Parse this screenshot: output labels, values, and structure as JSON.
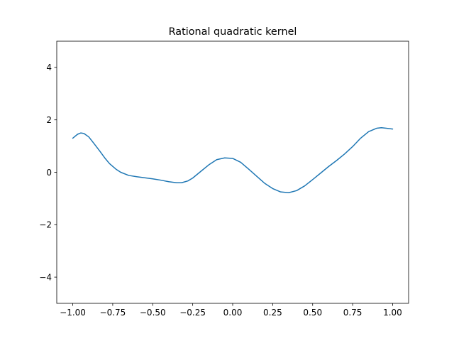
{
  "chart_data": {
    "type": "line",
    "title": "Rational quadratic kernel",
    "xlabel": "",
    "ylabel": "",
    "xlim": [
      -1.1,
      1.1
    ],
    "ylim": [
      -5,
      5
    ],
    "xticks": [
      -1.0,
      -0.75,
      -0.5,
      -0.25,
      0.0,
      0.25,
      0.5,
      0.75,
      1.0
    ],
    "xtick_labels": [
      "−1.00",
      "−0.75",
      "−0.50",
      "−0.25",
      "0.00",
      "0.25",
      "0.50",
      "0.75",
      "1.00"
    ],
    "yticks": [
      -4,
      -2,
      0,
      2,
      4
    ],
    "ytick_labels": [
      "−4",
      "−2",
      "0",
      "2",
      "4"
    ],
    "grid": false,
    "series": [
      {
        "color": "#1f77b4",
        "x": [
          -1.0,
          -0.97,
          -0.95,
          -0.93,
          -0.9,
          -0.87,
          -0.83,
          -0.8,
          -0.77,
          -0.73,
          -0.7,
          -0.65,
          -0.6,
          -0.55,
          -0.5,
          -0.45,
          -0.4,
          -0.35,
          -0.32,
          -0.28,
          -0.25,
          -0.2,
          -0.15,
          -0.1,
          -0.05,
          0.0,
          0.05,
          0.1,
          0.15,
          0.2,
          0.25,
          0.3,
          0.35,
          0.4,
          0.45,
          0.5,
          0.55,
          0.6,
          0.65,
          0.7,
          0.75,
          0.8,
          0.85,
          0.9,
          0.93,
          0.96,
          1.0
        ],
        "y": [
          1.3,
          1.45,
          1.5,
          1.48,
          1.35,
          1.12,
          0.8,
          0.55,
          0.33,
          0.12,
          0.0,
          -0.12,
          -0.17,
          -0.21,
          -0.25,
          -0.3,
          -0.36,
          -0.4,
          -0.4,
          -0.33,
          -0.22,
          0.03,
          0.28,
          0.48,
          0.55,
          0.53,
          0.38,
          0.12,
          -0.15,
          -0.42,
          -0.62,
          -0.75,
          -0.78,
          -0.7,
          -0.52,
          -0.28,
          -0.03,
          0.22,
          0.45,
          0.7,
          0.98,
          1.3,
          1.55,
          1.68,
          1.7,
          1.68,
          1.65
        ]
      }
    ]
  }
}
